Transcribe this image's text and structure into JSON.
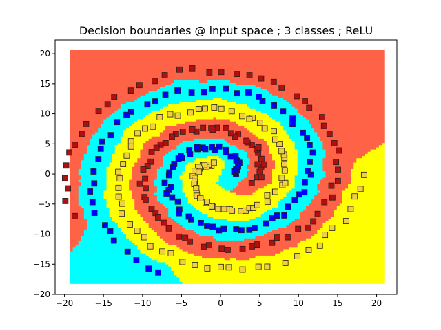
{
  "chart_data": {
    "type": "scatter",
    "title": "Decision boundaries @ input space ; 3 classes ; ReLU",
    "xlabel": "",
    "ylabel": "",
    "xlim": [
      -21.2,
      22.6
    ],
    "ylim": [
      -20,
      22.3
    ],
    "x_ticks": [
      -20,
      -15,
      -10,
      -5,
      0,
      5,
      10,
      15,
      20
    ],
    "y_ticks": [
      -20,
      -15,
      -10,
      -5,
      0,
      5,
      10,
      15,
      20
    ],
    "grid": false,
    "legend": "none",
    "region_extent": {
      "x": [
        -19.3,
        20.8
      ],
      "y": [
        -18.2,
        20.6
      ]
    },
    "classes": [
      {
        "id": "red",
        "region_color": "#ff6347",
        "marker_color": "#b01010"
      },
      {
        "id": "yellow",
        "region_color": "#ffff00",
        "marker_color": "#f0d040"
      },
      {
        "id": "cyan",
        "region_color": "#00ffff",
        "marker_color": "#0000ff"
      }
    ],
    "marker": "square",
    "series": [
      {
        "class": "red",
        "spiral": {
          "theta_start": 2.9,
          "theta_end": 12.9,
          "rotation_deg": 180,
          "scale": 1.57,
          "noise": 0.45,
          "count": 100
        }
      },
      {
        "class": "yellow",
        "spiral": {
          "theta_start": 1.1,
          "theta_end": 11.5,
          "rotation_deg": 60,
          "scale": 1.57,
          "noise": 0.45,
          "count": 100
        }
      },
      {
        "class": "cyan",
        "spiral": {
          "theta_start": 1.2,
          "theta_end": 11.6,
          "rotation_deg": 300,
          "scale": 1.57,
          "noise": 0.45,
          "count": 100
        }
      }
    ]
  }
}
